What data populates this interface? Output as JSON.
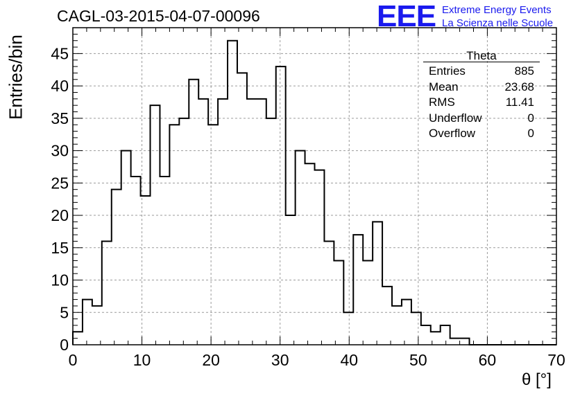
{
  "title": "CAGL-03-2015-04-07-00096",
  "logo": {
    "text": "EEE",
    "line1": "Extreme Energy Events",
    "line2": "La Scienza nelle Scuole",
    "color": "#1a1aee"
  },
  "stats": {
    "title": "Theta",
    "rows": [
      {
        "label": "Entries",
        "value": "885"
      },
      {
        "label": "Mean",
        "value": "23.68"
      },
      {
        "label": "RMS",
        "value": "11.41"
      },
      {
        "label": "Underflow",
        "value": "0"
      },
      {
        "label": "Overflow",
        "value": "0"
      }
    ]
  },
  "chart_data": {
    "type": "histogram",
    "title": "CAGL-03-2015-04-07-00096",
    "xlabel": "θ [°]",
    "ylabel": "Entries/bin",
    "xlim": [
      0,
      70
    ],
    "ylim": [
      0,
      49
    ],
    "xticks": [
      0,
      10,
      20,
      30,
      40,
      50,
      60,
      70
    ],
    "yticks": [
      0,
      5,
      10,
      15,
      20,
      25,
      30,
      35,
      40,
      45
    ],
    "grid": true,
    "bin_width": 1.4,
    "bin_edges_start": 0,
    "counts": [
      2,
      7,
      6,
      16,
      24,
      30,
      26,
      23,
      37,
      26,
      34,
      35,
      41,
      38,
      34,
      38,
      47,
      42,
      38,
      38,
      35,
      43,
      20,
      30,
      28,
      27,
      16,
      13,
      5,
      17,
      13,
      19,
      9,
      6,
      7,
      5,
      3,
      2,
      3,
      1,
      1,
      0,
      0,
      0,
      0,
      0,
      0,
      0,
      0,
      0
    ],
    "line_color": "#000000"
  }
}
